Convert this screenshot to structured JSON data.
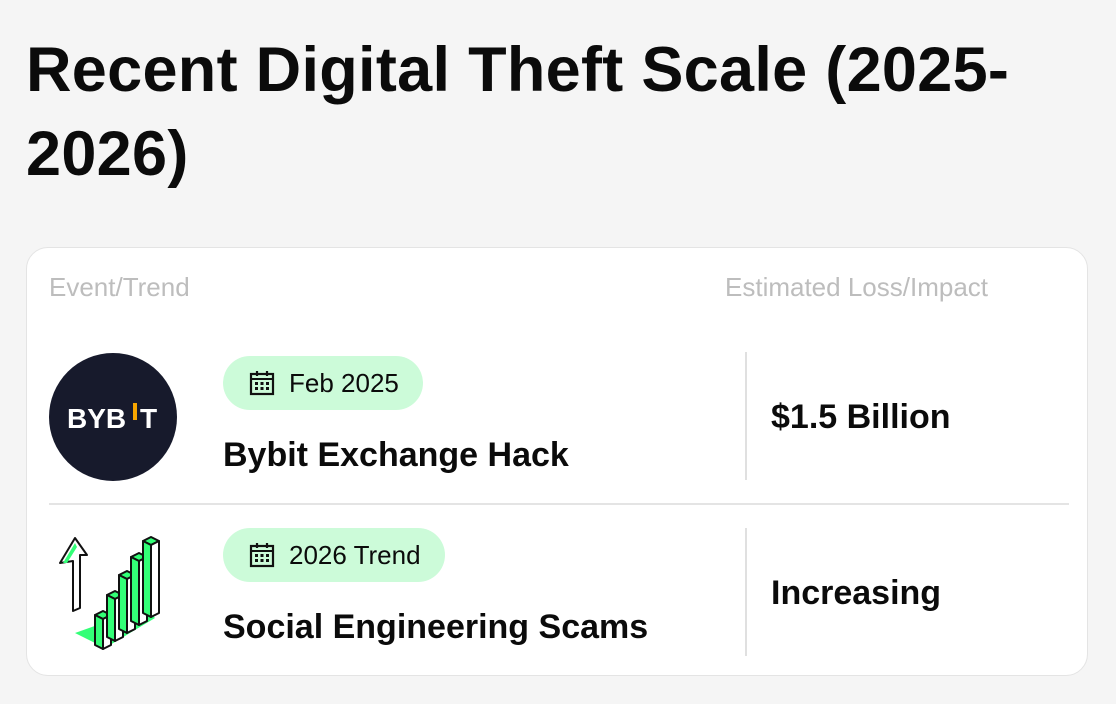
{
  "title": "Recent Digital Theft Scale (2025-2026)",
  "table": {
    "headers": [
      "Event/Trend",
      "Estimated Loss/Impact"
    ],
    "rows": [
      {
        "date": "Feb 2025",
        "event": "Bybit Exchange Hack",
        "impact": "$1.5 Billion",
        "icon": "bybit-logo",
        "logo_text": "BYBIT"
      },
      {
        "date": "2026 Trend",
        "event": "Social Engineering Scams",
        "impact": "Increasing",
        "icon": "rising-bar-chart-icon"
      }
    ]
  },
  "colors": {
    "badge_bg": "#ccfbd9",
    "accent_green": "#33ff77",
    "logo_bg": "#171a2c",
    "logo_accent": "#f7a600"
  }
}
